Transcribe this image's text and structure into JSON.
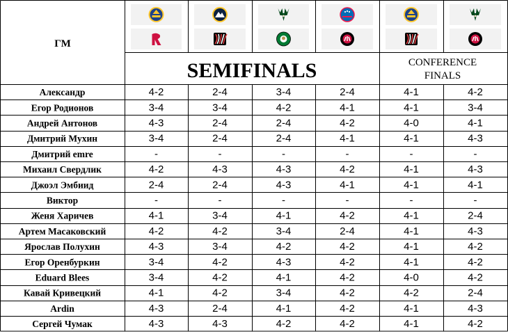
{
  "header": {
    "gm_label": "ГМ",
    "semifinals_label": "SEMIFINALS",
    "conference_finals_label_line1": "CONFERENCE",
    "conference_finals_label_line2": "FINALS"
  },
  "matchups": [
    {
      "top": {
        "logo": "warriors-logo",
        "color": "#1D428A",
        "accent": "#FFC72C"
      },
      "bottom": {
        "logo": "rockets-logo",
        "color": "#CE1141",
        "accent": "#C4CED4"
      }
    },
    {
      "top": {
        "logo": "nuggets-logo",
        "color": "#0E2240",
        "accent": "#FEC524"
      },
      "bottom": {
        "logo": "blazers-logo",
        "color": "#000000",
        "accent": "#E03A3E"
      }
    },
    {
      "top": {
        "logo": "bucks-logo",
        "color": "#00471B",
        "accent": "#EEE1C6"
      },
      "bottom": {
        "logo": "celtics-logo",
        "color": "#007A33",
        "accent": "#BA9653"
      }
    },
    {
      "top": {
        "logo": "76ers-logo",
        "color": "#006BB6",
        "accent": "#ED174C"
      },
      "bottom": {
        "logo": "raptors-logo",
        "color": "#000000",
        "accent": "#CE1141"
      }
    },
    {
      "top": {
        "logo": "warriors-logo",
        "color": "#1D428A",
        "accent": "#FFC72C"
      },
      "bottom": {
        "logo": "blazers-logo",
        "color": "#000000",
        "accent": "#E03A3E"
      }
    },
    {
      "top": {
        "logo": "bucks-logo",
        "color": "#00471B",
        "accent": "#EEE1C6"
      },
      "bottom": {
        "logo": "raptors-logo",
        "color": "#000000",
        "accent": "#CE1141"
      }
    }
  ],
  "rows": [
    {
      "name": "Александр",
      "picks": [
        "4-2",
        "2-4",
        "3-4",
        "2-4",
        "4-1",
        "4-2"
      ]
    },
    {
      "name": "Егор Родионов",
      "picks": [
        "3-4",
        "3-4",
        "4-2",
        "4-1",
        "4-1",
        "3-4"
      ]
    },
    {
      "name": "Андрей Антонов",
      "picks": [
        "4-3",
        "2-4",
        "2-4",
        "4-2",
        "4-0",
        "4-1"
      ]
    },
    {
      "name": "Дмитрий Мухин",
      "picks": [
        "3-4",
        "2-4",
        "2-4",
        "4-1",
        "4-1",
        "4-3"
      ]
    },
    {
      "name": "Дмитрий emre",
      "picks": [
        "-",
        "-",
        "-",
        "-",
        "-",
        "-"
      ]
    },
    {
      "name": "Михаил Свердлик",
      "picks": [
        "4-2",
        "4-3",
        "4-3",
        "4-2",
        "4-1",
        "4-3"
      ]
    },
    {
      "name": "Джоэл Эмбиид",
      "picks": [
        "2-4",
        "2-4",
        "4-3",
        "4-1",
        "4-1",
        "4-1"
      ]
    },
    {
      "name": "Виктор",
      "picks": [
        "-",
        "-",
        "-",
        "-",
        "-",
        "-"
      ]
    },
    {
      "name": "Женя Харичев",
      "picks": [
        "4-1",
        "3-4",
        "4-1",
        "4-2",
        "4-1",
        "2-4"
      ]
    },
    {
      "name": "Артем Масаковский",
      "picks": [
        "4-2",
        "4-2",
        "3-4",
        "2-4",
        "4-1",
        "4-3"
      ]
    },
    {
      "name": "Ярослав Полухин",
      "picks": [
        "4-3",
        "3-4",
        "4-2",
        "4-2",
        "4-1",
        "4-2"
      ]
    },
    {
      "name": "Егор Оренбуркин",
      "picks": [
        "3-4",
        "4-2",
        "4-3",
        "4-2",
        "4-1",
        "4-2"
      ]
    },
    {
      "name": "Eduard Blees",
      "picks": [
        "3-4",
        "4-2",
        "4-1",
        "4-2",
        "4-0",
        "4-2"
      ]
    },
    {
      "name": "Кавай Кривецкий",
      "picks": [
        "4-1",
        "4-2",
        "3-4",
        "4-2",
        "4-2",
        "2-4"
      ]
    },
    {
      "name": "Ardin",
      "picks": [
        "4-3",
        "2-4",
        "4-1",
        "4-2",
        "4-1",
        "4-3"
      ]
    },
    {
      "name": "Сергей Чумак",
      "picks": [
        "4-3",
        "4-3",
        "4-2",
        "4-2",
        "4-1",
        "4-2"
      ]
    }
  ]
}
